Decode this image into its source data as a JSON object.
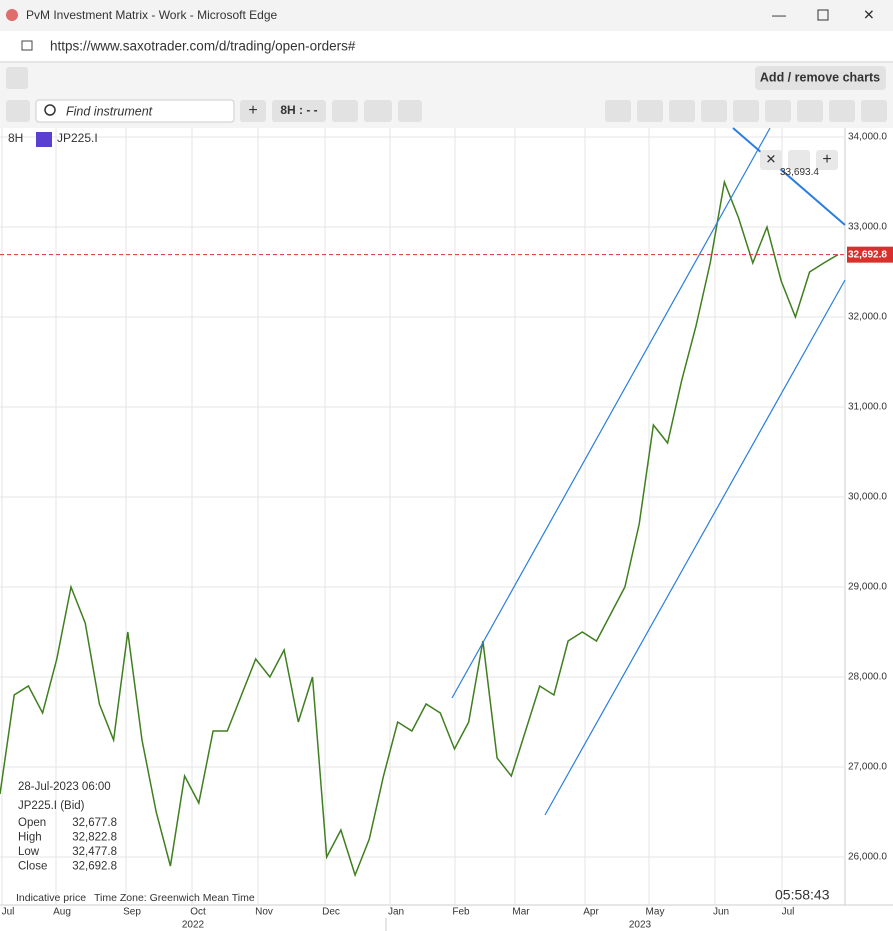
{
  "window": {
    "title": "PvM Investment Matrix - Work - Microsoft Edge",
    "url": "https://www.saxotrader.com/d/trading/open-orders#"
  },
  "toolbar": {
    "add_remove": "Add / remove charts",
    "search_placeholder": "Find instrument",
    "interval_button": "8H : - -"
  },
  "chart_data": {
    "type": "line",
    "interval": "8H",
    "instrument": "JP225.I",
    "values": [
      26700,
      27800,
      27900,
      27600,
      28200,
      29000,
      28600,
      27700,
      27300,
      28500,
      27300,
      26500,
      25900,
      26900,
      26600,
      27400,
      27400,
      27800,
      28200,
      28000,
      28300,
      27500,
      28000,
      26000,
      26300,
      25800,
      26200,
      26900,
      27500,
      27400,
      27700,
      27600,
      27200,
      27500,
      28400,
      27100,
      26900,
      27400,
      27900,
      27800,
      28400,
      28500,
      28400,
      28700,
      29000,
      29700,
      30800,
      30600,
      31300,
      31900,
      32600,
      33500,
      33100,
      32600,
      33000,
      32400,
      32000,
      32500,
      32600,
      32692.8
    ],
    "color": "#3f7f1f",
    "ylim": [
      25600,
      34100
    ],
    "yticks": [
      {
        "value": 34000,
        "label": "34,000.0"
      },
      {
        "value": 33000,
        "label": "33,000.0"
      },
      {
        "value": 32000,
        "label": "32,000.0"
      },
      {
        "value": 31000,
        "label": "31,000.0"
      },
      {
        "value": 30000,
        "label": "30,000.0"
      },
      {
        "value": 29000,
        "label": "29,000.0"
      },
      {
        "value": 28000,
        "label": "28,000.0"
      },
      {
        "value": 27000,
        "label": "27,000.0"
      },
      {
        "value": 26000,
        "label": "26,000.0"
      }
    ],
    "months": [
      "Jul",
      "Aug",
      "Sep",
      "Oct",
      "Nov",
      "Dec",
      "Jan",
      "Feb",
      "Mar",
      "Apr",
      "May",
      "Jun",
      "Jul"
    ],
    "years": [
      "2022",
      "2023"
    ],
    "last_price": {
      "value": 32692.8,
      "label": "32,692.8"
    },
    "high_annotation": {
      "value": 33693.4,
      "label": "33,693.4"
    },
    "grid": true,
    "info": {
      "date": "28-Jul-2023 06:00",
      "name": "JP225.I (Bid)",
      "rows": [
        [
          "Open",
          "32,677.8"
        ],
        [
          "High",
          "32,822.8"
        ],
        [
          "Low",
          "32,477.8"
        ],
        [
          "Close",
          "32,692.8"
        ]
      ]
    },
    "footer": {
      "indicative": "Indicative price",
      "timezone": "Time Zone: Greenwich Mean Time",
      "clock": "05:58:43"
    }
  }
}
